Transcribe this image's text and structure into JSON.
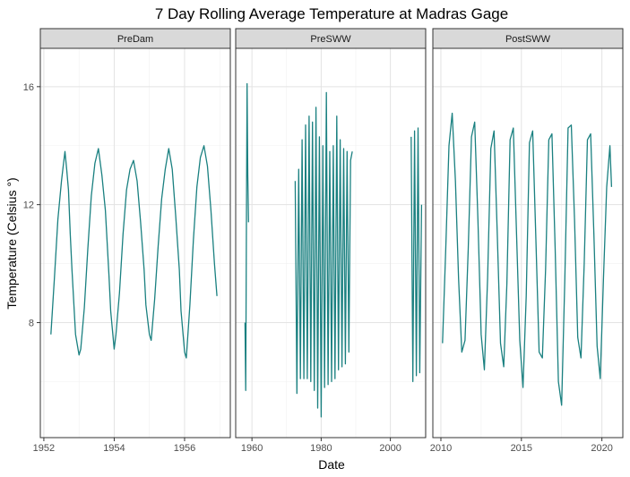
{
  "chart_data": {
    "type": "line",
    "title": "7 Day Rolling Average Temperature at Madras Gage",
    "xlabel": "Date",
    "ylabel": "Temperature (Celsius °)",
    "ylim": [
      4.1,
      17.3
    ],
    "y_ticks": [
      8,
      12,
      16
    ],
    "y_tick_labels": [
      "8",
      "12",
      "16"
    ],
    "grid": true,
    "line_color": "#1a8080",
    "panel_border_color": "#333333",
    "strip_fill": "#d9d9d9",
    "panels": [
      {
        "label": "PreDam",
        "xlim": [
          1951.9,
          1957.3
        ],
        "x_ticks": [
          1952,
          1954,
          1956
        ],
        "x_tick_labels": [
          "1952",
          "1954",
          "1956"
        ],
        "segments": [
          {
            "x": [
              1952.2,
              1952.3,
              1952.4,
              1952.5,
              1952.55,
              1952.6,
              1952.65,
              1952.7,
              1952.75,
              1952.8,
              1952.9,
              1953.0,
              1953.05,
              1953.15,
              1953.25,
              1953.35,
              1953.45,
              1953.55,
              1953.65,
              1953.75,
              1953.85,
              1953.9,
              1954.0,
              1954.05,
              1954.15,
              1954.25,
              1954.35,
              1954.45,
              1954.55,
              1954.65,
              1954.75,
              1954.85,
              1954.9,
              1955.0,
              1955.05,
              1955.15,
              1955.25,
              1955.35,
              1955.45,
              1955.55,
              1955.65,
              1955.75,
              1955.85,
              1955.9,
              1956.0,
              1956.05,
              1956.15,
              1956.25,
              1956.35,
              1956.45,
              1956.55,
              1956.65,
              1956.75,
              1956.85,
              1956.92
            ],
            "y": [
              7.6,
              9.5,
              11.5,
              12.8,
              13.3,
              13.8,
              13.2,
              12.5,
              11.0,
              9.8,
              7.6,
              6.9,
              7.1,
              8.5,
              10.5,
              12.3,
              13.4,
              13.9,
              13.0,
              11.8,
              9.6,
              8.4,
              7.1,
              7.6,
              9.0,
              11.0,
              12.5,
              13.2,
              13.5,
              12.8,
              11.4,
              9.8,
              8.6,
              7.6,
              7.4,
              8.8,
              10.6,
              12.2,
              13.2,
              13.9,
              13.2,
              11.6,
              9.8,
              8.4,
              7.0,
              6.8,
              8.6,
              10.8,
              12.6,
              13.6,
              14.0,
              13.3,
              11.8,
              10.0,
              8.9
            ]
          }
        ]
      },
      {
        "label": "PreSWW",
        "xlim": [
          1955.3,
          2010.2
        ],
        "x_ticks": [
          1960,
          1980,
          2000
        ],
        "x_tick_labels": [
          "1960",
          "1980",
          "2000"
        ],
        "segments": [
          {
            "x": [
              1958.0,
              1958.2,
              1958.4,
              1958.6,
              1958.8,
              1959.0
            ],
            "y": [
              8.0,
              5.7,
              11.5,
              16.1,
              13.0,
              11.4
            ]
          },
          {
            "x": [
              1972.5,
              1973.0,
              1973.5,
              1974.0,
              1974.5,
              1975.0,
              1975.5,
              1976.0,
              1976.5,
              1977.0,
              1977.5,
              1978.0,
              1978.5,
              1979.0,
              1979.5,
              1980.0,
              1980.5,
              1981.0,
              1981.5,
              1982.0,
              1982.5,
              1983.0,
              1983.5,
              1984.0,
              1984.5,
              1985.0,
              1985.5,
              1986.0,
              1986.5,
              1987.0,
              1987.5,
              1988.0,
              1988.5,
              1989.0
            ],
            "y": [
              12.8,
              5.6,
              13.2,
              6.1,
              14.2,
              6.1,
              14.7,
              6.1,
              15.0,
              6.0,
              14.8,
              5.7,
              15.3,
              5.1,
              14.3,
              4.8,
              14.0,
              5.8,
              15.8,
              5.9,
              13.8,
              6.0,
              14.0,
              6.1,
              15.0,
              6.4,
              14.2,
              6.5,
              13.9,
              6.6,
              13.8,
              7.0,
              13.5,
              13.8
            ]
          },
          {
            "x": [
              2006.0,
              2006.5,
              2007.0,
              2007.5,
              2008.0,
              2008.5,
              2009.0
            ],
            "y": [
              14.3,
              6.0,
              14.5,
              6.2,
              14.6,
              6.3,
              12.0
            ]
          }
        ]
      },
      {
        "label": "PostSWW",
        "xlim": [
          2009.5,
          2021.3
        ],
        "x_ticks": [
          2010,
          2015,
          2020
        ],
        "x_tick_labels": [
          "2010",
          "2015",
          "2020"
        ],
        "segments": [
          {
            "x": [
              2010.1,
              2010.3,
              2010.5,
              2010.7,
              2010.9,
              2011.1,
              2011.3,
              2011.5,
              2011.7,
              2011.9,
              2012.1,
              2012.3,
              2012.5,
              2012.7,
              2012.9,
              2013.1,
              2013.3,
              2013.5,
              2013.7,
              2013.9,
              2014.1,
              2014.3,
              2014.5,
              2014.7,
              2014.9,
              2015.1,
              2015.3,
              2015.5,
              2015.7,
              2015.9,
              2016.1,
              2016.3,
              2016.5,
              2016.7,
              2016.9,
              2017.1,
              2017.3,
              2017.5,
              2017.7,
              2017.9,
              2018.1,
              2018.3,
              2018.5,
              2018.7,
              2018.9,
              2019.1,
              2019.3,
              2019.5,
              2019.7,
              2019.9,
              2020.1,
              2020.3,
              2020.5,
              2020.6
            ],
            "y": [
              7.3,
              10.5,
              14.0,
              15.1,
              12.8,
              9.5,
              7.0,
              7.4,
              10.5,
              14.3,
              14.8,
              11.5,
              7.6,
              6.4,
              9.5,
              13.9,
              14.5,
              11.0,
              7.3,
              6.5,
              9.3,
              14.2,
              14.6,
              11.0,
              7.4,
              5.8,
              8.9,
              14.1,
              14.5,
              10.8,
              7.0,
              6.8,
              9.8,
              14.2,
              14.4,
              10.5,
              6.0,
              5.2,
              9.5,
              14.6,
              14.7,
              11.5,
              7.5,
              6.8,
              10.0,
              14.2,
              14.4,
              11.0,
              7.2,
              6.1,
              9.5,
              12.6,
              14.0,
              12.6
            ]
          }
        ]
      }
    ]
  }
}
